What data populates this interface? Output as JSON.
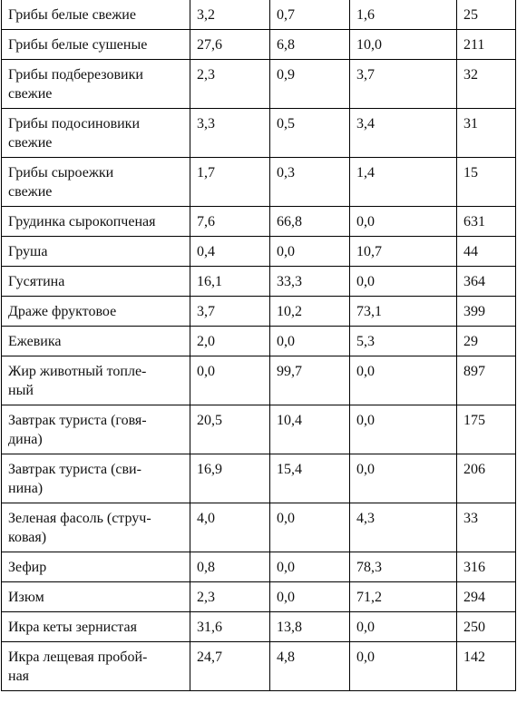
{
  "table": {
    "rows": [
      [
        "Грибы белые свежие",
        "3,2",
        "0,7",
        "1,6",
        "25"
      ],
      [
        "Грибы белые сушеные",
        "27,6",
        "6,8",
        "10,0",
        "211"
      ],
      [
        "Грибы подберезовики\nсвежие",
        "2,3",
        "0,9",
        "3,7",
        "32"
      ],
      [
        "Грибы подосиновики\nсвежие",
        "3,3",
        "0,5",
        "3,4",
        "31"
      ],
      [
        "Грибы сыроежки\nсвежие",
        "1,7",
        "0,3",
        "1,4",
        "15"
      ],
      [
        "Грудинка сырокопченая",
        "7,6",
        "66,8",
        "0,0",
        "631"
      ],
      [
        "Груша",
        "0,4",
        "0,0",
        "10,7",
        "44"
      ],
      [
        "Гусятина",
        "16,1",
        "33,3",
        "0,0",
        "364"
      ],
      [
        "Драже фруктовое",
        "3,7",
        "10,2",
        "73,1",
        "399"
      ],
      [
        "Ежевика",
        "2,0",
        "0,0",
        "5,3",
        "29"
      ],
      [
        "Жир животный топле-\nный",
        "0,0",
        "99,7",
        "0,0",
        "897"
      ],
      [
        "Завтрак туриста (говя-\nдина)",
        "20,5",
        "10,4",
        "0,0",
        "175"
      ],
      [
        "Завтрак туриста (сви-\nнина)",
        "16,9",
        "15,4",
        "0,0",
        "206"
      ],
      [
        "Зеленая фасоль (струч-\nковая)",
        "4,0",
        "0,0",
        "4,3",
        "33"
      ],
      [
        "Зефир",
        "0,8",
        "0,0",
        "78,3",
        "316"
      ],
      [
        "Изюм",
        "2,3",
        "0,0",
        "71,2",
        "294"
      ],
      [
        "Икра кеты зернистая",
        "31,6",
        "13,8",
        "0,0",
        "250"
      ],
      [
        "Икра лещевая пробой-\nная",
        "24,7",
        "4,8",
        "0,0",
        "142"
      ]
    ]
  }
}
